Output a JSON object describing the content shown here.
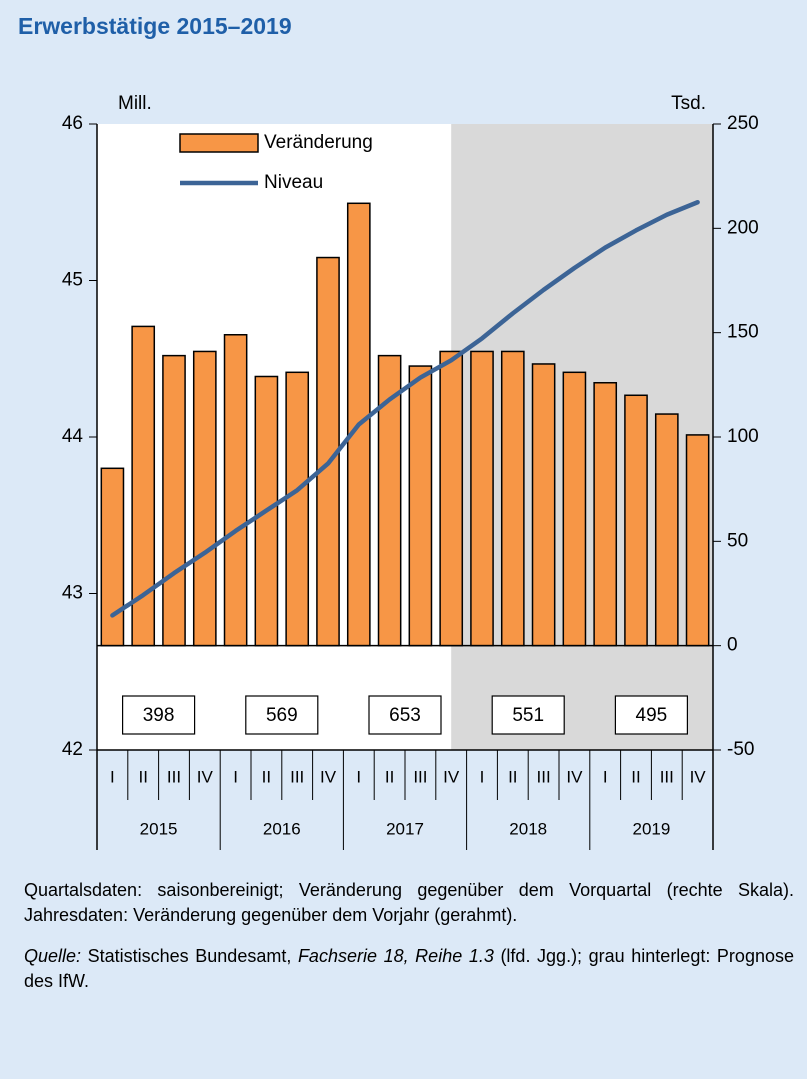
{
  "chart_data": {
    "type": "bar",
    "title": "Erwerbstätige 2015–2019",
    "y_label": "Mill.",
    "y2_label": "Tsd.",
    "categories": [
      "I",
      "II",
      "III",
      "IV",
      "I",
      "II",
      "III",
      "IV",
      "I",
      "II",
      "III",
      "IV",
      "I",
      "II",
      "III",
      "IV",
      "I",
      "II",
      "III",
      "IV"
    ],
    "years": [
      "2015",
      "2016",
      "2017",
      "2018",
      "2019"
    ],
    "series": [
      {
        "name": "Veränderung",
        "type": "bar",
        "axis": "y2",
        "color": "#f79646",
        "values": [
          85,
          153,
          139,
          141,
          149,
          129,
          131,
          186,
          212,
          139,
          134,
          141,
          141,
          141,
          135,
          131,
          126,
          120,
          111,
          101
        ]
      },
      {
        "name": "Niveau",
        "type": "line",
        "axis": "y",
        "color": "#3c6496",
        "values": [
          42.86,
          42.99,
          43.13,
          43.26,
          43.4,
          43.53,
          43.66,
          43.83,
          44.08,
          44.24,
          44.38,
          44.49,
          44.63,
          44.79,
          44.94,
          45.08,
          45.21,
          45.32,
          45.42,
          45.5
        ]
      }
    ],
    "annual_values": [
      398,
      569,
      653,
      551,
      495
    ],
    "ylim": [
      42,
      46
    ],
    "yticks": [
      42,
      43,
      44,
      45,
      46
    ],
    "y2lim": [
      -50,
      250
    ],
    "y2ticks": [
      -50,
      0,
      50,
      100,
      150,
      200,
      250
    ],
    "forecast_start": 11,
    "forecast_color": "#d9d9d9",
    "grid": false,
    "legend": "top-left"
  },
  "notes": {
    "line1": "Quartalsdaten: saisonbereinigt; Veränderung gegenüber dem Vorquartal (rechte Skala). Jahresdaten: Veränderung gegenüber dem Vorjahr (gerahmt).",
    "source_label": "Quelle:",
    "source_a": " Statistisches Bundesamt, ",
    "source_b": "Fachserie 18, Reihe 1.3",
    "source_c": " (lfd. Jgg.); grau hinterlegt: Prognose des IfW."
  }
}
